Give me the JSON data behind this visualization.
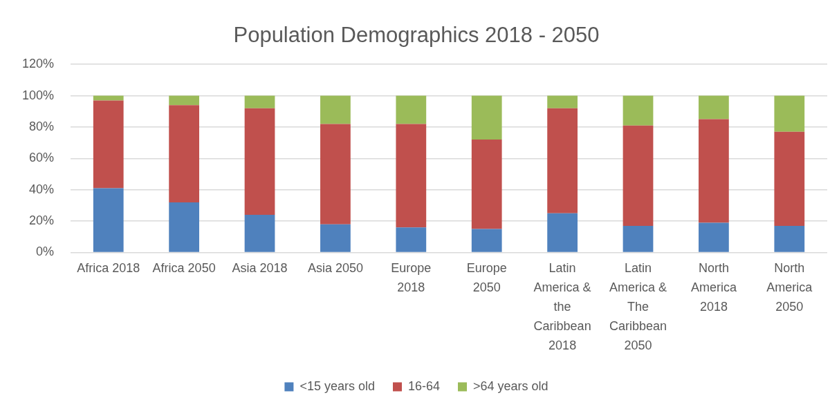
{
  "chart_data": {
    "type": "bar",
    "title": "Population Demographics 2018 - 2050",
    "stacked": true,
    "categories": [
      "Africa 2018",
      "Africa 2050",
      "Asia 2018",
      "Asia 2050",
      "Europe 2018",
      "Europe 2050",
      "Latin America & the Caribbean 2018",
      "Latin America & The Caribbean 2050",
      "North America 2018",
      "North America 2050"
    ],
    "series": [
      {
        "name": "<15 years old",
        "color": "#4f81bd",
        "values": [
          41,
          32,
          24,
          18,
          16,
          15,
          25,
          17,
          19,
          17
        ]
      },
      {
        "name": "16-64",
        "color": "#c0504d",
        "values": [
          56,
          62,
          68,
          64,
          66,
          57,
          67,
          64,
          66,
          60
        ]
      },
      {
        "name": ">64 years old",
        "color": "#9bbb59",
        "values": [
          3,
          6,
          8,
          18,
          18,
          28,
          8,
          19,
          15,
          23
        ]
      }
    ],
    "ylim": [
      0,
      120
    ],
    "yticks": [
      {
        "value": 0,
        "label": "0%"
      },
      {
        "value": 20,
        "label": "20%"
      },
      {
        "value": 40,
        "label": "40%"
      },
      {
        "value": 60,
        "label": "60%"
      },
      {
        "value": 80,
        "label": "80%"
      },
      {
        "value": 100,
        "label": "100%"
      },
      {
        "value": 120,
        "label": "120%"
      }
    ],
    "grid": "y",
    "legend": "bottom"
  }
}
